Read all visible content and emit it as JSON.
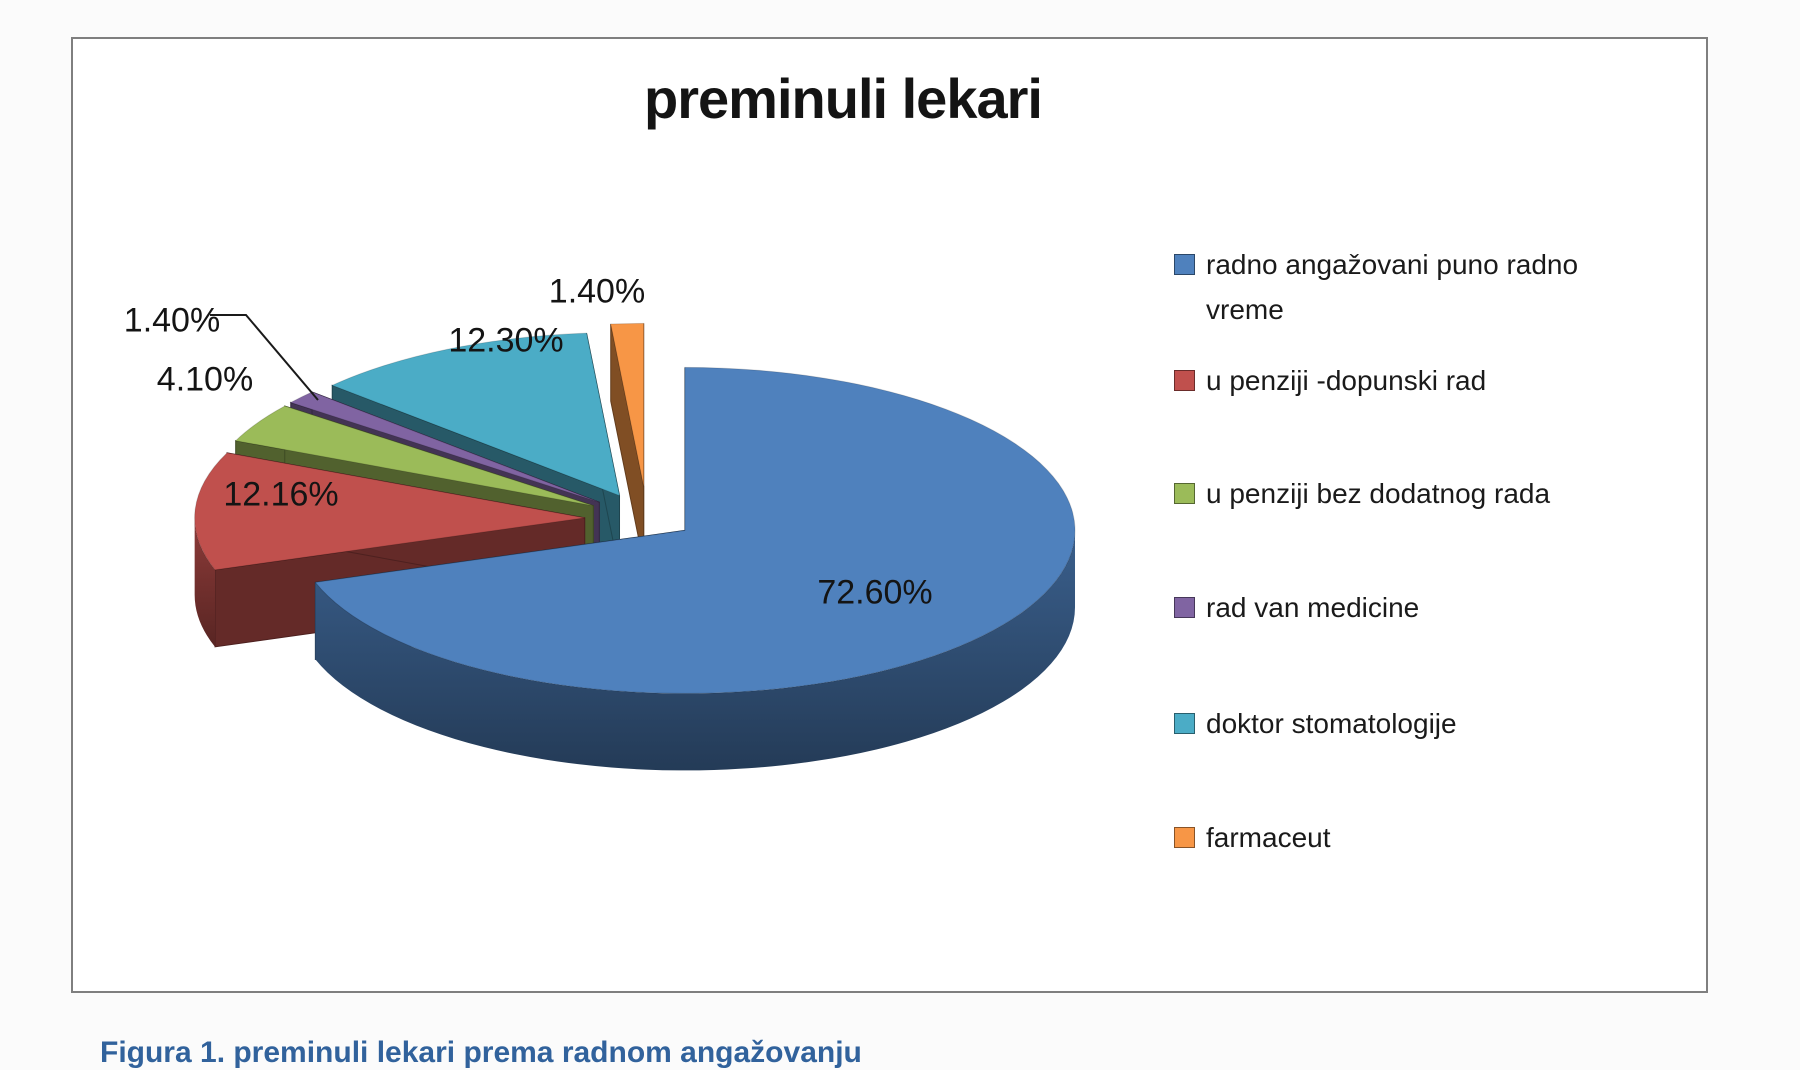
{
  "page": {
    "background": "#fbfbfb"
  },
  "chart": {
    "title": "preminuli lekari",
    "title_color": "#141414",
    "box_border_color": "#7f7f7f",
    "box_background": "#ffffff"
  },
  "chart_data": {
    "type": "pie",
    "style": "3d-exploded",
    "title": "preminuli lekari",
    "unit": "%",
    "legend_position": "right",
    "slices": [
      {
        "label": "radno angažovani puno radno vreme",
        "value": 72.6,
        "display": "72.60%",
        "color": "#4f81bd"
      },
      {
        "label": "u penziji -dopunski rad",
        "value": 12.16,
        "display": "12.16%",
        "color": "#c0504d"
      },
      {
        "label": "u penziji bez dodatnog rada",
        "value": 4.1,
        "display": "4.10%",
        "color": "#9bbb59"
      },
      {
        "label": "rad van medicine",
        "value": 1.4,
        "display": "1.40%",
        "color": "#8064a2"
      },
      {
        "label": "doktor stomatologije",
        "value": 12.3,
        "display": "12.30%",
        "color": "#4bacc6"
      },
      {
        "label": "farmaceut",
        "value": 1.4,
        "display": "1.40%",
        "color": "#f79646"
      }
    ]
  },
  "caption": {
    "text": "Figura 1. preminuli lekari prema radnom angažovanju",
    "color": "#31629c"
  }
}
